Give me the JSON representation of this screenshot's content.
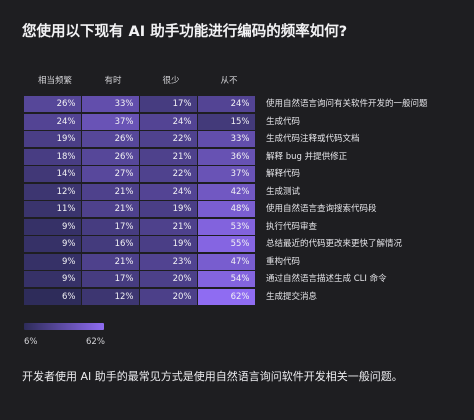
{
  "title": "您使用以下现有 AI 助手功能进行编码的频率如何?",
  "caption": "开发者使用 AI 助手的最常见方式是使用自然语言询问软件开发相关一般问题。",
  "legend": {
    "min_label": "6%",
    "max_label": "62%",
    "color_low": "#2e2c5a",
    "color_high": "#8f6cf2"
  },
  "chart_data": {
    "type": "heatmap",
    "title": "您使用以下现有 AI 助手功能进行编码的频率如何?",
    "columns": [
      "相当频繁",
      "有时",
      "很少",
      "从不"
    ],
    "rows": [
      "使用自然语言询问有关软件开发的一般问题",
      "生成代码",
      "生成代码注释或代码文档",
      "解释 bug 并提供修正",
      "解释代码",
      "生成测试",
      "使用自然语言查询搜索代码段",
      "执行代码审查",
      "总结最近的代码更改来更快了解情况",
      "重构代码",
      "通过自然语言描述生成 CLI 命令",
      "生成提交消息"
    ],
    "values": [
      [
        26,
        33,
        17,
        24
      ],
      [
        24,
        37,
        24,
        15
      ],
      [
        19,
        26,
        22,
        33
      ],
      [
        18,
        26,
        21,
        36
      ],
      [
        14,
        27,
        22,
        37
      ],
      [
        12,
        21,
        24,
        42
      ],
      [
        11,
        21,
        19,
        48
      ],
      [
        9,
        17,
        21,
        53
      ],
      [
        9,
        16,
        19,
        55
      ],
      [
        9,
        21,
        23,
        47
      ],
      [
        9,
        17,
        20,
        54
      ],
      [
        6,
        12,
        20,
        62
      ]
    ],
    "value_suffix": "%",
    "scale_range": [
      6,
      62
    ]
  }
}
